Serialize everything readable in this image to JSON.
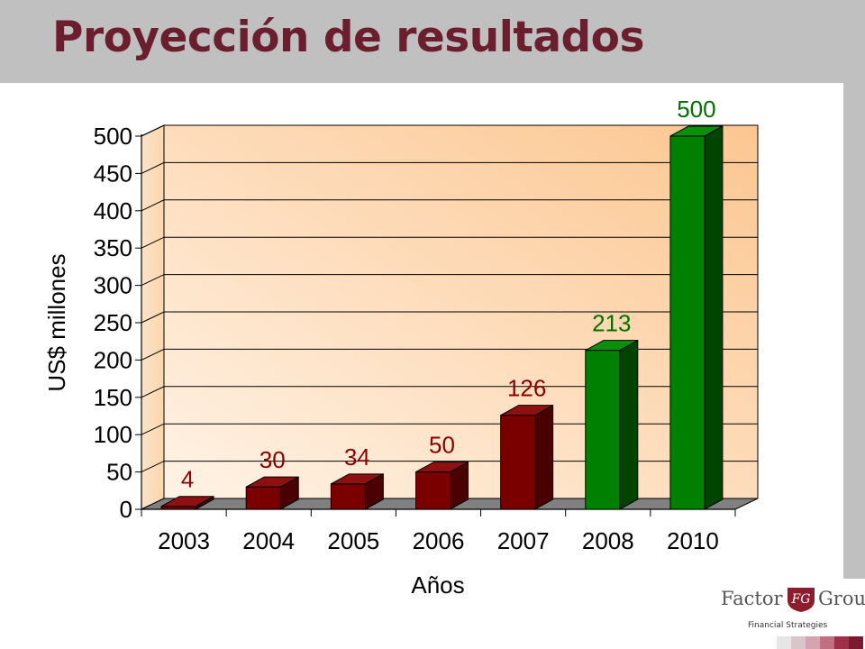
{
  "slide": {
    "title": "Proyección de resultados"
  },
  "logo": {
    "word_left": "Factor",
    "mark": "FG",
    "word_right": "Group",
    "tagline": "Financial Strategies"
  },
  "colors": {
    "title": "#6b1e2e",
    "header_band": "#c0c0c0",
    "bar_red": "#7a0000",
    "bar_green": "#008000",
    "label_red": "#8b0000",
    "label_green": "#007000",
    "plot_bg": "#fcd2a6"
  },
  "chart_data": {
    "type": "bar",
    "categories": [
      "2003",
      "2004",
      "2005",
      "2006",
      "2007",
      "2008",
      "2010"
    ],
    "values": [
      4,
      30,
      34,
      50,
      126,
      213,
      500
    ],
    "data_labels": [
      "4",
      "30",
      "34",
      "50",
      "126",
      "213",
      "500"
    ],
    "bar_colors": [
      "red",
      "red",
      "red",
      "red",
      "red",
      "green",
      "green"
    ],
    "xlabel": "Años",
    "ylabel": "US$ millones",
    "ylim": [
      0,
      500
    ],
    "yticks": [
      0,
      50,
      100,
      150,
      200,
      250,
      300,
      350,
      400,
      450,
      500
    ],
    "grid": true,
    "style": "3d"
  }
}
